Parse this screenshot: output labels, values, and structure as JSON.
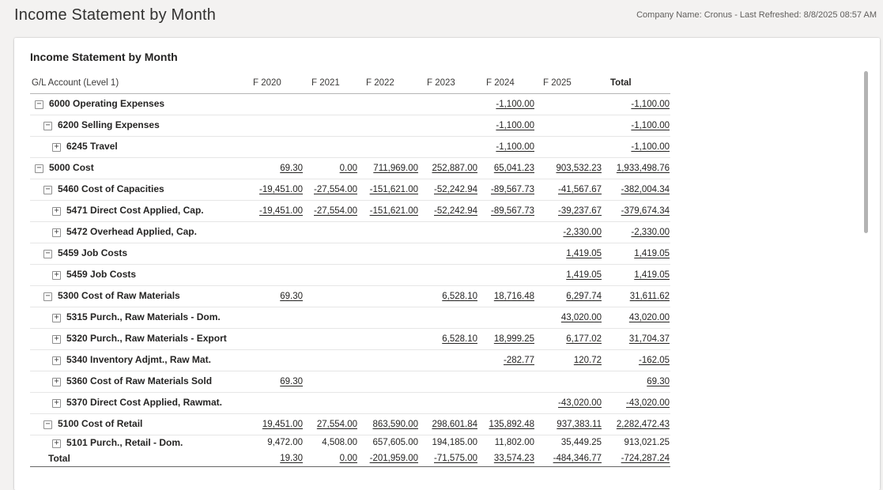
{
  "header": {
    "title": "Income Statement by Month",
    "meta": "Company Name: Cronus - Last Refreshed: 8/8/2025 08:57 AM"
  },
  "card": {
    "title": "Income Statement by Month"
  },
  "table": {
    "row_header": "G/L Account (Level 1)",
    "columns": [
      "F 2020",
      "F 2021",
      "F 2022",
      "F 2023",
      "F 2024",
      "F 2025",
      "Total"
    ],
    "rows": [
      {
        "label": "6000 Operating Expenses",
        "level": 0,
        "expander": "minus",
        "underline": true,
        "values": [
          "",
          "",
          "",
          "",
          "-1,100.00",
          "",
          "-1,100.00"
        ]
      },
      {
        "label": "6200 Selling Expenses",
        "level": 1,
        "expander": "minus",
        "underline": true,
        "values": [
          "",
          "",
          "",
          "",
          "-1,100.00",
          "",
          "-1,100.00"
        ]
      },
      {
        "label": "6245 Travel",
        "level": 2,
        "expander": "plus",
        "underline": true,
        "values": [
          "",
          "",
          "",
          "",
          "-1,100.00",
          "",
          "-1,100.00"
        ]
      },
      {
        "label": "5000 Cost",
        "level": 0,
        "expander": "minus",
        "underline": true,
        "values": [
          "69.30",
          "0.00",
          "711,969.00",
          "252,887.00",
          "65,041.23",
          "903,532.23",
          "1,933,498.76"
        ]
      },
      {
        "label": "5460 Cost of Capacities",
        "level": 1,
        "expander": "minus",
        "underline": true,
        "values": [
          "-19,451.00",
          "-27,554.00",
          "-151,621.00",
          "-52,242.94",
          "-89,567.73",
          "-41,567.67",
          "-382,004.34"
        ]
      },
      {
        "label": "5471 Direct Cost Applied, Cap.",
        "level": 2,
        "expander": "plus",
        "underline": true,
        "values": [
          "-19,451.00",
          "-27,554.00",
          "-151,621.00",
          "-52,242.94",
          "-89,567.73",
          "-39,237.67",
          "-379,674.34"
        ]
      },
      {
        "label": "5472 Overhead Applied, Cap.",
        "level": 2,
        "expander": "plus",
        "underline": true,
        "values": [
          "",
          "",
          "",
          "",
          "",
          "-2,330.00",
          "-2,330.00"
        ]
      },
      {
        "label": "5459 Job Costs",
        "level": 1,
        "expander": "minus",
        "underline": true,
        "values": [
          "",
          "",
          "",
          "",
          "",
          "1,419.05",
          "1,419.05"
        ]
      },
      {
        "label": "5459 Job Costs",
        "level": 2,
        "expander": "plus",
        "underline": true,
        "values": [
          "",
          "",
          "",
          "",
          "",
          "1,419.05",
          "1,419.05"
        ]
      },
      {
        "label": "5300 Cost of Raw Materials",
        "level": 1,
        "expander": "minus",
        "underline": true,
        "values": [
          "69.30",
          "",
          "",
          "6,528.10",
          "18,716.48",
          "6,297.74",
          "31,611.62"
        ]
      },
      {
        "label": "5315 Purch., Raw Materials - Dom.",
        "level": 2,
        "expander": "plus",
        "underline": true,
        "values": [
          "",
          "",
          "",
          "",
          "",
          "43,020.00",
          "43,020.00"
        ]
      },
      {
        "label": "5320 Purch., Raw Materials - Export",
        "level": 2,
        "expander": "plus",
        "underline": true,
        "values": [
          "",
          "",
          "",
          "6,528.10",
          "18,999.25",
          "6,177.02",
          "31,704.37"
        ]
      },
      {
        "label": "5340 Inventory Adjmt., Raw Mat.",
        "level": 2,
        "expander": "plus",
        "underline": true,
        "values": [
          "",
          "",
          "",
          "",
          "-282.77",
          "120.72",
          "-162.05"
        ]
      },
      {
        "label": "5360 Cost of Raw Materials Sold",
        "level": 2,
        "expander": "plus",
        "underline": true,
        "values": [
          "69.30",
          "",
          "",
          "",
          "",
          "",
          "69.30"
        ]
      },
      {
        "label": "5370 Direct Cost Applied, Rawmat.",
        "level": 2,
        "expander": "plus",
        "underline": true,
        "values": [
          "",
          "",
          "",
          "",
          "",
          "-43,020.00",
          "-43,020.00"
        ]
      },
      {
        "label": "5100 Cost of Retail",
        "level": 1,
        "expander": "minus",
        "underline": true,
        "values": [
          "19,451.00",
          "27,554.00",
          "863,590.00",
          "298,601.84",
          "135,892.48",
          "937,383.11",
          "2,282,472.43"
        ]
      },
      {
        "label": "5101 Purch., Retail - Dom.",
        "level": 2,
        "expander": "plus",
        "underline": false,
        "compact": true,
        "no_border": true,
        "values": [
          "9,472.00",
          "4,508.00",
          "657,605.00",
          "194,185.00",
          "11,802.00",
          "35,449.25",
          "913,021.25"
        ]
      },
      {
        "label": "Total",
        "level": 0,
        "expander": null,
        "underline": true,
        "compact": true,
        "total": true,
        "values": [
          "19.30",
          "0.00",
          "-201,959.00",
          "-71,575.00",
          "33,574.23",
          "-484,346.77",
          "-724,287.24"
        ]
      }
    ]
  }
}
